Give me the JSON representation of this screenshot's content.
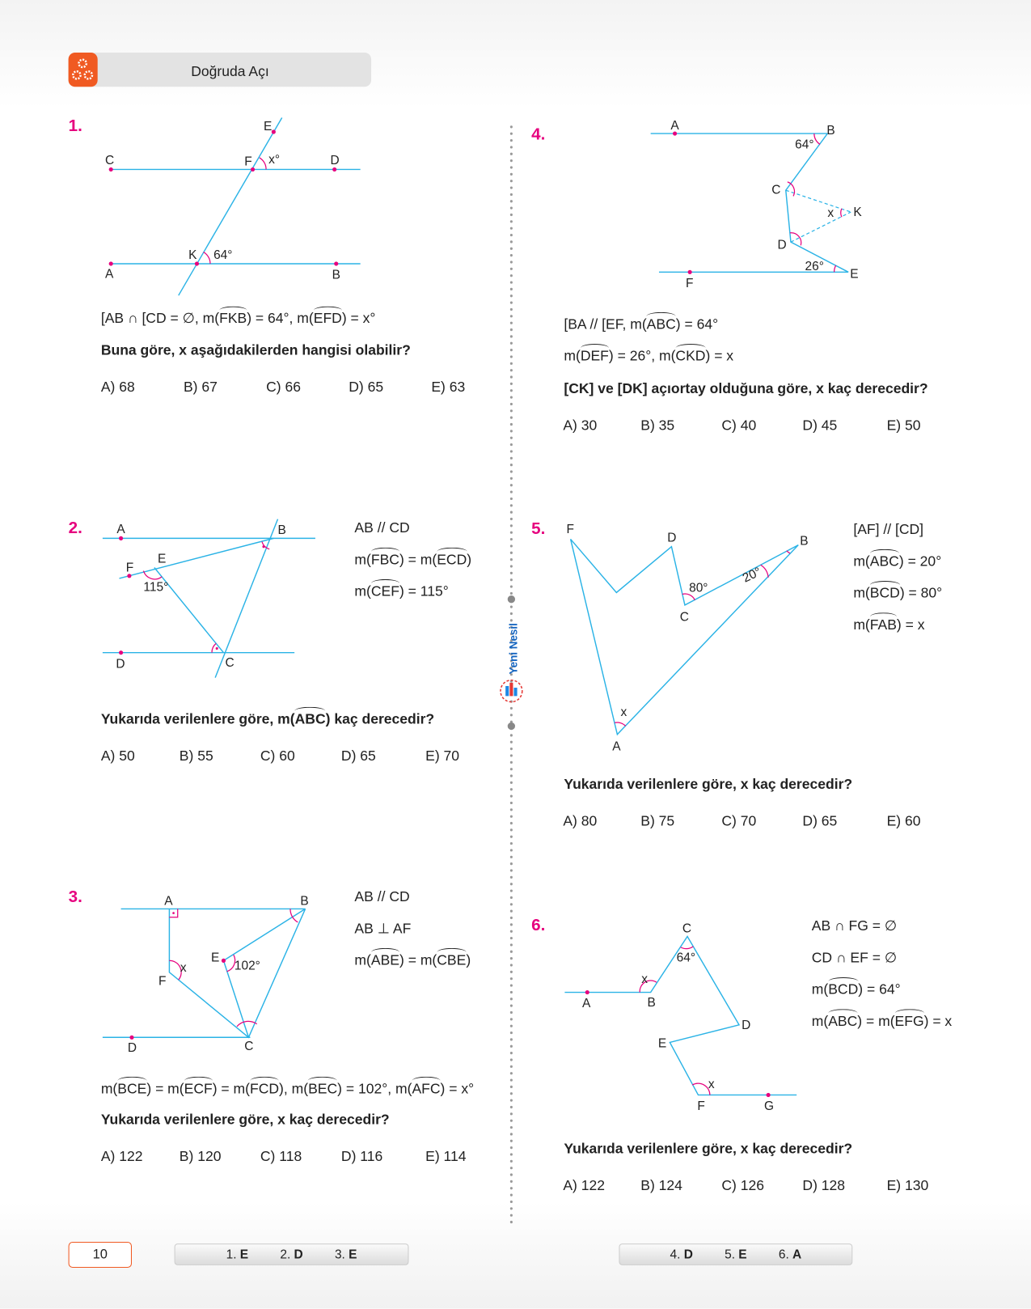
{
  "header": {
    "title": "Doğruda Açı",
    "icon": "gears-icon",
    "accent": "#f05a22"
  },
  "colors": {
    "number": "#e6007e",
    "line": "#2bb3e6",
    "point": "#e6007e"
  },
  "q1": {
    "number": "1.",
    "labels": [
      "E",
      "C",
      "F",
      "x°",
      "D",
      "K",
      "64°",
      "A",
      "B"
    ],
    "given": [
      {
        "t": "[AB ∩ [CD = ∅,  m("
      },
      {
        "t": "FKB",
        "hat": true
      },
      {
        "t": ") = 64°,  m("
      },
      {
        "t": "EFD",
        "hat": true
      },
      {
        "t": ") = x°"
      }
    ],
    "question": "Buna göre, x aşağıdakilerden hangisi olabilir?",
    "options": [
      "A) 68",
      "B) 67",
      "C) 66",
      "D) 65",
      "E) 63"
    ]
  },
  "q2": {
    "number": "2.",
    "labels": [
      "A",
      "B",
      "F",
      "E",
      "115°",
      "D",
      "C"
    ],
    "given": [
      [
        {
          "t": "AB // CD"
        }
      ],
      [
        {
          "t": "m("
        },
        {
          "t": "FBC",
          "hat": true
        },
        {
          "t": ") = m("
        },
        {
          "t": "ECD",
          "hat": true
        },
        {
          "t": ")"
        }
      ],
      [
        {
          "t": "m("
        },
        {
          "t": "CEF",
          "hat": true
        },
        {
          "t": ") = 115°"
        }
      ]
    ],
    "question": [
      {
        "t": "Yukarıda verilenlere göre, m("
      },
      {
        "t": "ABC",
        "hat": true
      },
      {
        "t": ") kaç derecedir?"
      }
    ],
    "options": [
      "A) 50",
      "B) 55",
      "C) 60",
      "D) 65",
      "E) 70"
    ]
  },
  "q3": {
    "number": "3.",
    "labels": [
      "A",
      "B",
      "E",
      "102°",
      "x",
      "F",
      "D",
      "C"
    ],
    "given": [
      [
        {
          "t": "AB // CD"
        }
      ],
      [
        {
          "t": "AB ⊥ AF"
        }
      ],
      [
        {
          "t": "m("
        },
        {
          "t": "ABE",
          "hat": true
        },
        {
          "t": ") = m("
        },
        {
          "t": "CBE",
          "hat": true
        },
        {
          "t": ")"
        }
      ]
    ],
    "line": [
      {
        "t": "m("
      },
      {
        "t": "BCE",
        "hat": true
      },
      {
        "t": ") = m("
      },
      {
        "t": "ECF",
        "hat": true
      },
      {
        "t": ") = m("
      },
      {
        "t": "FCD",
        "hat": true
      },
      {
        "t": "),   m("
      },
      {
        "t": "BEC",
        "hat": true
      },
      {
        "t": ") = 102°,   m("
      },
      {
        "t": "AFC",
        "hat": true
      },
      {
        "t": ") = x°"
      }
    ],
    "question": "Yukarıda verilenlere göre, x kaç derecedir?",
    "options": [
      "A) 122",
      "B) 120",
      "C) 118",
      "D) 116",
      "E) 114"
    ]
  },
  "q4": {
    "number": "4.",
    "labels": [
      "A",
      "B",
      "64°",
      "C",
      "x",
      "K",
      "D",
      "26°",
      "F",
      "E"
    ],
    "given": [
      [
        {
          "t": "[BA // [EF,   m("
        },
        {
          "t": "ABC",
          "hat": true
        },
        {
          "t": ") = 64°"
        }
      ],
      [
        {
          "t": "m("
        },
        {
          "t": "DEF",
          "hat": true
        },
        {
          "t": ") = 26°,   m("
        },
        {
          "t": "CKD",
          "hat": true
        },
        {
          "t": ") = x"
        }
      ]
    ],
    "question": "[CK]  ve  [DK] açıortay olduğuna göre, x kaç derecedir?",
    "options": [
      "A) 30",
      "B) 35",
      "C) 40",
      "D) 45",
      "E) 50"
    ]
  },
  "q5": {
    "number": "5.",
    "labels": [
      "F",
      "D",
      "B",
      "80°",
      "20°",
      "C",
      "x",
      "A"
    ],
    "given": [
      [
        {
          "t": "[AF] // [CD]"
        }
      ],
      [
        {
          "t": "m("
        },
        {
          "t": "ABC",
          "hat": true
        },
        {
          "t": ") = 20°"
        }
      ],
      [
        {
          "t": "m("
        },
        {
          "t": "BCD",
          "hat": true
        },
        {
          "t": ") = 80°"
        }
      ],
      [
        {
          "t": "m("
        },
        {
          "t": "FAB",
          "hat": true
        },
        {
          "t": ") = x"
        }
      ]
    ],
    "question": "Yukarıda verilenlere göre, x kaç derecedir?",
    "options": [
      "A) 80",
      "B) 75",
      "C) 70",
      "D) 65",
      "E) 60"
    ]
  },
  "q6": {
    "number": "6.",
    "labels": [
      "C",
      "64°",
      "x",
      "A",
      "B",
      "D",
      "E",
      "x",
      "F",
      "G"
    ],
    "given": [
      [
        {
          "t": "AB ∩ FG = ∅"
        }
      ],
      [
        {
          "t": "CD ∩ EF = ∅"
        }
      ],
      [
        {
          "t": "m("
        },
        {
          "t": "BCD",
          "hat": true
        },
        {
          "t": ") = 64°"
        }
      ],
      [
        {
          "t": "m("
        },
        {
          "t": "ABC",
          "hat": true
        },
        {
          "t": ") = m("
        },
        {
          "t": "EFG",
          "hat": true
        },
        {
          "t": ") = x"
        }
      ]
    ],
    "question": "Yukarıda verilenlere göre, x kaç derecedir?",
    "options": [
      "A) 122",
      "B) 124",
      "C) 126",
      "D) 128",
      "E) 130"
    ]
  },
  "logo": {
    "text": "Yeni Nesil"
  },
  "footer": {
    "page_number": "10",
    "answers_left": [
      {
        "n": "1.",
        "a": "E"
      },
      {
        "n": "2.",
        "a": "D"
      },
      {
        "n": "3.",
        "a": "E"
      }
    ],
    "answers_right": [
      {
        "n": "4.",
        "a": "D"
      },
      {
        "n": "5.",
        "a": "E"
      },
      {
        "n": "6.",
        "a": "A"
      }
    ]
  }
}
